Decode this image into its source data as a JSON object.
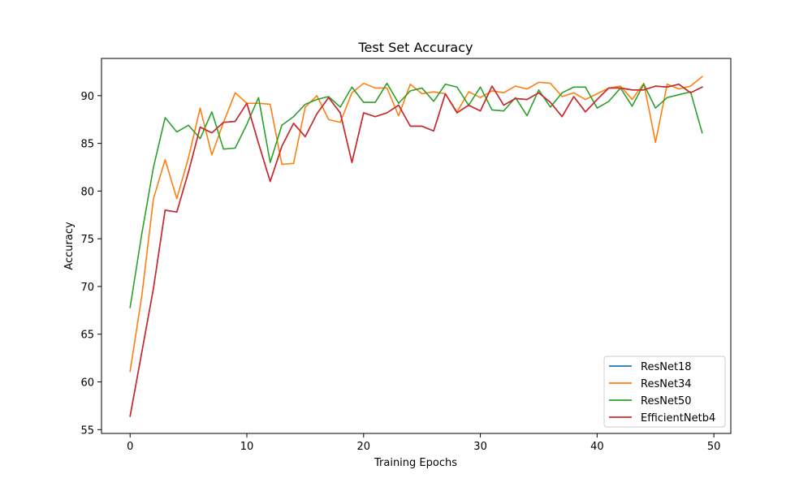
{
  "chart_data": {
    "type": "line",
    "title": "Test Set Accuracy",
    "xlabel": "Training Epochs",
    "ylabel": "Accuracy",
    "xlim": [
      -2.45,
      51.45
    ],
    "ylim": [
      54.6,
      93.9
    ],
    "xticks": [
      0,
      10,
      20,
      30,
      40,
      50
    ],
    "yticks": [
      55,
      60,
      65,
      70,
      75,
      80,
      85,
      90
    ],
    "grid": false,
    "legend_position": "lower-right",
    "x": [
      0,
      1,
      2,
      3,
      4,
      5,
      6,
      7,
      8,
      9,
      10,
      11,
      12,
      13,
      14,
      15,
      16,
      17,
      18,
      19,
      20,
      21,
      22,
      23,
      24,
      25,
      26,
      27,
      28,
      29,
      30,
      31,
      32,
      33,
      34,
      35,
      36,
      37,
      38,
      39,
      40,
      41,
      42,
      43,
      44,
      45,
      46,
      47,
      48,
      49
    ],
    "series": [
      {
        "name": "ResNet18",
        "color": "#1f77b4",
        "values": [
          56.4,
          63.1,
          69.8,
          78.0,
          77.8,
          82.0,
          86.7,
          86.1,
          87.2,
          87.3,
          89.2,
          85.0,
          81.0,
          84.7,
          87.1,
          85.7,
          88.1,
          89.8,
          88.2,
          83.0,
          88.2,
          87.8,
          88.2,
          89.0,
          86.8,
          86.8,
          86.3,
          90.2,
          88.2,
          89.0,
          88.4,
          91.0,
          89.0,
          89.7,
          89.6,
          90.3,
          89.3,
          87.8,
          89.9,
          88.3,
          89.6,
          90.8,
          90.8,
          90.6,
          90.6,
          91.0,
          90.9,
          91.2,
          90.3,
          90.9
        ]
      },
      {
        "name": "ResNet34",
        "color": "#ff7f0e",
        "values": [
          61.1,
          69.0,
          79.2,
          83.3,
          79.2,
          83.5,
          88.7,
          83.8,
          87.2,
          90.3,
          89.2,
          89.2,
          89.1,
          82.8,
          82.9,
          88.8,
          90.0,
          87.5,
          87.2,
          90.3,
          91.3,
          90.8,
          90.8,
          87.9,
          91.2,
          90.2,
          90.4,
          90.2,
          88.3,
          90.4,
          89.8,
          90.5,
          90.3,
          91.0,
          90.7,
          91.4,
          91.3,
          89.9,
          90.3,
          89.6,
          90.2,
          90.8,
          91.0,
          89.6,
          91.3,
          85.1,
          91.2,
          90.7,
          91.0,
          92.0
        ]
      },
      {
        "name": "ResNet50",
        "color": "#2ca02c",
        "values": [
          67.8,
          75.5,
          82.5,
          87.7,
          86.2,
          86.9,
          85.5,
          88.3,
          84.4,
          84.5,
          87.0,
          89.8,
          83.0,
          86.9,
          87.8,
          89.1,
          89.6,
          89.9,
          88.8,
          90.9,
          89.3,
          89.3,
          91.3,
          89.2,
          90.5,
          90.8,
          89.4,
          91.2,
          90.9,
          89.0,
          90.9,
          88.5,
          88.4,
          89.8,
          87.9,
          90.6,
          88.8,
          90.3,
          90.9,
          90.9,
          88.7,
          89.4,
          90.8,
          88.9,
          91.2,
          88.7,
          89.8,
          90.1,
          90.4,
          86.1
        ]
      },
      {
        "name": "EfficientNetb4",
        "color": "#d62728",
        "values": [
          56.4,
          63.1,
          69.8,
          78.0,
          77.8,
          82.0,
          86.7,
          86.1,
          87.2,
          87.3,
          89.2,
          85.0,
          81.0,
          84.7,
          87.1,
          85.7,
          88.1,
          89.8,
          88.2,
          83.0,
          88.2,
          87.8,
          88.2,
          89.0,
          86.8,
          86.8,
          86.3,
          90.2,
          88.2,
          89.0,
          88.4,
          91.0,
          89.0,
          89.7,
          89.6,
          90.3,
          89.3,
          87.8,
          89.9,
          88.3,
          89.6,
          90.8,
          90.8,
          90.6,
          90.6,
          91.0,
          90.9,
          91.2,
          90.3,
          90.9
        ]
      }
    ]
  }
}
